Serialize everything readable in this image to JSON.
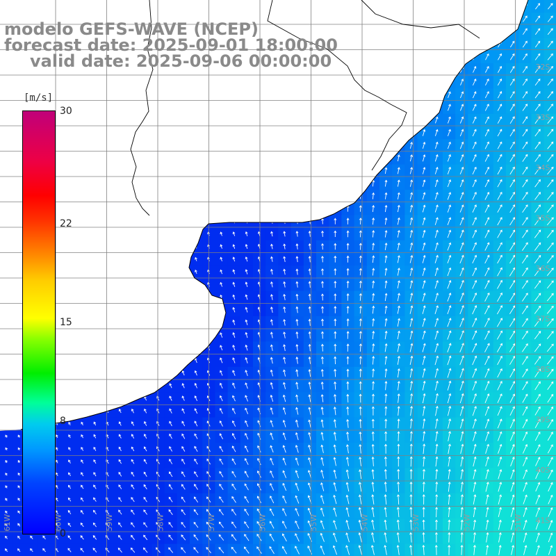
{
  "title": {
    "line1": "modelo GEFS-WAVE (NCEP)",
    "line2": "forecast date: 2025-09-01 18:00:00",
    "line3": "valid date: 2025-09-06 00:00:00"
  },
  "colorbar": {
    "unit": "[m/s]",
    "ticks": [
      {
        "label": "30",
        "value": 30
      },
      {
        "label": "22",
        "value": 22
      },
      {
        "label": "15",
        "value": 15
      },
      {
        "label": "8",
        "value": 8
      },
      {
        "label": "0",
        "value": 0
      }
    ],
    "range": [
      0,
      30
    ],
    "colors": [
      "#0000ff",
      "#0099ff",
      "#00ccee",
      "#00ee00",
      "#ffff00",
      "#ff8800",
      "#ff0000",
      "#c0007a"
    ]
  },
  "map": {
    "lat_labels": [
      "32S",
      "33S",
      "34S",
      "35S",
      "36S",
      "37S",
      "38S",
      "39S",
      "40S",
      "41S"
    ],
    "lon_labels": [
      "61W",
      "60W",
      "59W",
      "58W",
      "57W",
      "56W",
      "55W",
      "54W",
      "53W",
      "52W",
      "51W"
    ],
    "colors": {
      "land": "#ffffff",
      "grid": "#808080",
      "coast": "#000000",
      "arrows": "#ffffff",
      "labels": "#9a9a9a",
      "low_speed": "#0033ee",
      "high_speed": "#10ddd0"
    }
  }
}
